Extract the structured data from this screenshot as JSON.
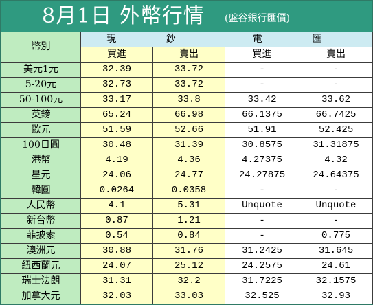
{
  "header": {
    "title": "8月1日 外幣行情",
    "subtitle": "(盤谷銀行匯價)"
  },
  "table": {
    "currency_header": "幣別",
    "groups": {
      "cash": "現 鈔",
      "wire": "電 匯"
    },
    "subheaders": {
      "buy": "買進",
      "sell": "賣出"
    },
    "rows": [
      {
        "currency": "美元1元",
        "cash_buy": "32.39",
        "cash_sell": "33.72",
        "wire_buy": "-",
        "wire_sell": "-"
      },
      {
        "currency": "5-20元",
        "cash_buy": "32.73",
        "cash_sell": "33.72",
        "wire_buy": "-",
        "wire_sell": "-"
      },
      {
        "currency": "50-100元",
        "cash_buy": "33.17",
        "cash_sell": "33.8",
        "wire_buy": "33.42",
        "wire_sell": "33.62"
      },
      {
        "currency": "英鎊",
        "cash_buy": "65.24",
        "cash_sell": "66.98",
        "wire_buy": "66.1375",
        "wire_sell": "66.7425"
      },
      {
        "currency": "歐元",
        "cash_buy": "51.59",
        "cash_sell": "52.66",
        "wire_buy": "51.91",
        "wire_sell": "52.425"
      },
      {
        "currency": "100日圓",
        "cash_buy": "30.48",
        "cash_sell": "31.39",
        "wire_buy": "30.8575",
        "wire_sell": "31.31875"
      },
      {
        "currency": "港幣",
        "cash_buy": "4.19",
        "cash_sell": "4.36",
        "wire_buy": "4.27375",
        "wire_sell": "4.32"
      },
      {
        "currency": "星元",
        "cash_buy": "24.06",
        "cash_sell": "24.77",
        "wire_buy": "24.27875",
        "wire_sell": "24.64375"
      },
      {
        "currency": "韓圓",
        "cash_buy": "0.0264",
        "cash_sell": "0.0358",
        "wire_buy": "-",
        "wire_sell": "-"
      },
      {
        "currency": "人民幣",
        "cash_buy": "4.1",
        "cash_sell": "5.31",
        "wire_buy": "Unquote",
        "wire_sell": "Unquote"
      },
      {
        "currency": "新台幣",
        "cash_buy": "0.87",
        "cash_sell": "1.21",
        "wire_buy": "-",
        "wire_sell": "-"
      },
      {
        "currency": "菲披索",
        "cash_buy": "0.54",
        "cash_sell": "0.84",
        "wire_buy": "-",
        "wire_sell": "0.775"
      },
      {
        "currency": "澳洲元",
        "cash_buy": "30.88",
        "cash_sell": "31.76",
        "wire_buy": "31.2425",
        "wire_sell": "31.645"
      },
      {
        "currency": "紐西蘭元",
        "cash_buy": "24.07",
        "cash_sell": "25.12",
        "wire_buy": "24.2575",
        "wire_sell": "24.61"
      },
      {
        "currency": "瑞士法朗",
        "cash_buy": "31.31",
        "cash_sell": "32.2",
        "wire_buy": "31.7225",
        "wire_sell": "32.1575"
      },
      {
        "currency": "加拿大元",
        "cash_buy": "32.03",
        "cash_sell": "33.03",
        "wire_buy": "32.525",
        "wire_sell": "32.93"
      }
    ]
  }
}
